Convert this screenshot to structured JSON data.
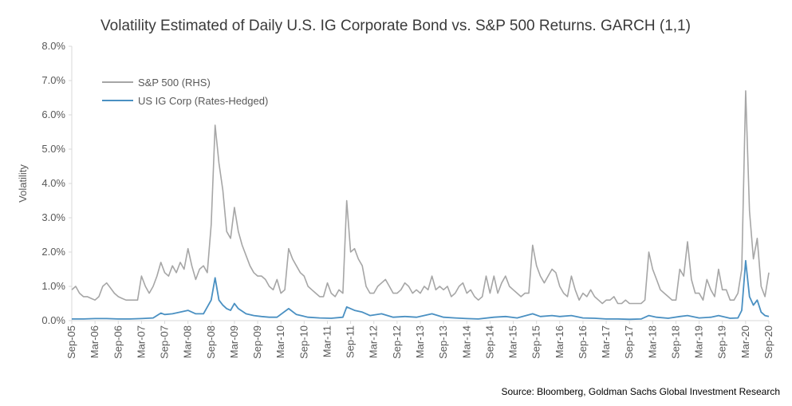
{
  "chart_data": {
    "type": "line",
    "title": "Volatility Estimated of Daily U.S. IG Corporate Bond vs. S&P 500 Returns. GARCH (1,1)",
    "ylabel": "Volatility",
    "xlabel": "",
    "ylim": [
      0,
      8
    ],
    "y_unit": "%",
    "y_tick_labels": [
      "0.0%",
      "1.0%",
      "2.0%",
      "3.0%",
      "4.0%",
      "5.0%",
      "6.0%",
      "7.0%",
      "8.0%"
    ],
    "x_tick_labels": [
      "Sep-05",
      "Mar-06",
      "Sep-06",
      "Mar-07",
      "Sep-07",
      "Mar-08",
      "Sep-08",
      "Mar-09",
      "Sep-09",
      "Mar-10",
      "Sep-10",
      "Mar-11",
      "Sep-11",
      "Mar-12",
      "Sep-12",
      "Mar-13",
      "Sep-13",
      "Mar-14",
      "Sep-14",
      "Mar-15",
      "Sep-15",
      "Mar-16",
      "Sep-16",
      "Mar-17",
      "Sep-17",
      "Mar-18",
      "Sep-18",
      "Mar-19",
      "Sep-19",
      "Mar-20",
      "Sep-20"
    ],
    "x_range": [
      "2005-09",
      "2020-09"
    ],
    "grid": false,
    "legend_position": "top-left",
    "source": "Source: Bloomberg, Goldman Sachs Global Investment Research",
    "series": [
      {
        "name": "S&P 500 (RHS)",
        "color": "#a6a6a6",
        "points": [
          [
            "2005-09",
            0.9
          ],
          [
            "2005-10",
            1.0
          ],
          [
            "2005-11",
            0.8
          ],
          [
            "2005-12",
            0.7
          ],
          [
            "2006-01",
            0.7
          ],
          [
            "2006-02",
            0.65
          ],
          [
            "2006-03",
            0.6
          ],
          [
            "2006-04",
            0.7
          ],
          [
            "2006-05",
            1.0
          ],
          [
            "2006-06",
            1.1
          ],
          [
            "2006-07",
            0.95
          ],
          [
            "2006-08",
            0.8
          ],
          [
            "2006-09",
            0.7
          ],
          [
            "2006-10",
            0.65
          ],
          [
            "2006-11",
            0.6
          ],
          [
            "2006-12",
            0.6
          ],
          [
            "2007-01",
            0.6
          ],
          [
            "2007-02",
            0.6
          ],
          [
            "2007-03",
            1.3
          ],
          [
            "2007-04",
            1.0
          ],
          [
            "2007-05",
            0.8
          ],
          [
            "2007-06",
            1.0
          ],
          [
            "2007-07",
            1.3
          ],
          [
            "2007-08",
            1.7
          ],
          [
            "2007-09",
            1.4
          ],
          [
            "2007-10",
            1.3
          ],
          [
            "2007-11",
            1.6
          ],
          [
            "2007-12",
            1.4
          ],
          [
            "2008-01",
            1.7
          ],
          [
            "2008-02",
            1.5
          ],
          [
            "2008-03",
            2.1
          ],
          [
            "2008-04",
            1.6
          ],
          [
            "2008-05",
            1.2
          ],
          [
            "2008-06",
            1.5
          ],
          [
            "2008-07",
            1.6
          ],
          [
            "2008-08",
            1.4
          ],
          [
            "2008-09",
            2.8
          ],
          [
            "2008-10",
            5.7
          ],
          [
            "2008-11",
            4.6
          ],
          [
            "2008-12",
            3.8
          ],
          [
            "2009-01",
            2.6
          ],
          [
            "2009-02",
            2.4
          ],
          [
            "2009-03",
            3.3
          ],
          [
            "2009-04",
            2.6
          ],
          [
            "2009-05",
            2.2
          ],
          [
            "2009-06",
            1.9
          ],
          [
            "2009-07",
            1.6
          ],
          [
            "2009-08",
            1.4
          ],
          [
            "2009-09",
            1.3
          ],
          [
            "2009-10",
            1.3
          ],
          [
            "2009-11",
            1.2
          ],
          [
            "2009-12",
            1.0
          ],
          [
            "2010-01",
            0.9
          ],
          [
            "2010-02",
            1.2
          ],
          [
            "2010-03",
            0.8
          ],
          [
            "2010-04",
            0.9
          ],
          [
            "2010-05",
            2.1
          ],
          [
            "2010-06",
            1.8
          ],
          [
            "2010-07",
            1.6
          ],
          [
            "2010-08",
            1.4
          ],
          [
            "2010-09",
            1.3
          ],
          [
            "2010-10",
            1.0
          ],
          [
            "2010-11",
            0.9
          ],
          [
            "2010-12",
            0.8
          ],
          [
            "2011-01",
            0.7
          ],
          [
            "2011-02",
            0.7
          ],
          [
            "2011-03",
            1.1
          ],
          [
            "2011-04",
            0.8
          ],
          [
            "2011-05",
            0.7
          ],
          [
            "2011-06",
            0.9
          ],
          [
            "2011-07",
            0.8
          ],
          [
            "2011-08",
            3.5
          ],
          [
            "2011-09",
            2.0
          ],
          [
            "2011-10",
            2.1
          ],
          [
            "2011-11",
            1.8
          ],
          [
            "2011-12",
            1.6
          ],
          [
            "2012-01",
            1.0
          ],
          [
            "2012-02",
            0.8
          ],
          [
            "2012-03",
            0.8
          ],
          [
            "2012-04",
            1.0
          ],
          [
            "2012-05",
            1.1
          ],
          [
            "2012-06",
            1.2
          ],
          [
            "2012-07",
            1.0
          ],
          [
            "2012-08",
            0.8
          ],
          [
            "2012-09",
            0.8
          ],
          [
            "2012-10",
            0.9
          ],
          [
            "2012-11",
            1.1
          ],
          [
            "2012-12",
            1.0
          ],
          [
            "2013-01",
            0.8
          ],
          [
            "2013-02",
            0.9
          ],
          [
            "2013-03",
            0.8
          ],
          [
            "2013-04",
            1.0
          ],
          [
            "2013-05",
            0.9
          ],
          [
            "2013-06",
            1.3
          ],
          [
            "2013-07",
            0.9
          ],
          [
            "2013-08",
            1.0
          ],
          [
            "2013-09",
            0.9
          ],
          [
            "2013-10",
            1.0
          ],
          [
            "2013-11",
            0.7
          ],
          [
            "2013-12",
            0.8
          ],
          [
            "2014-01",
            1.0
          ],
          [
            "2014-02",
            1.1
          ],
          [
            "2014-03",
            0.8
          ],
          [
            "2014-04",
            0.9
          ],
          [
            "2014-05",
            0.7
          ],
          [
            "2014-06",
            0.6
          ],
          [
            "2014-07",
            0.7
          ],
          [
            "2014-08",
            1.3
          ],
          [
            "2014-09",
            0.8
          ],
          [
            "2014-10",
            1.3
          ],
          [
            "2014-11",
            0.8
          ],
          [
            "2014-12",
            1.1
          ],
          [
            "2015-01",
            1.3
          ],
          [
            "2015-02",
            1.0
          ],
          [
            "2015-03",
            0.9
          ],
          [
            "2015-04",
            0.8
          ],
          [
            "2015-05",
            0.7
          ],
          [
            "2015-06",
            0.8
          ],
          [
            "2015-07",
            0.8
          ],
          [
            "2015-08",
            2.2
          ],
          [
            "2015-09",
            1.6
          ],
          [
            "2015-10",
            1.3
          ],
          [
            "2015-11",
            1.1
          ],
          [
            "2015-12",
            1.3
          ],
          [
            "2016-01",
            1.5
          ],
          [
            "2016-02",
            1.4
          ],
          [
            "2016-03",
            1.0
          ],
          [
            "2016-04",
            0.8
          ],
          [
            "2016-05",
            0.7
          ],
          [
            "2016-06",
            1.3
          ],
          [
            "2016-07",
            0.9
          ],
          [
            "2016-08",
            0.6
          ],
          [
            "2016-09",
            0.8
          ],
          [
            "2016-10",
            0.7
          ],
          [
            "2016-11",
            0.9
          ],
          [
            "2016-12",
            0.7
          ],
          [
            "2017-01",
            0.6
          ],
          [
            "2017-02",
            0.5
          ],
          [
            "2017-03",
            0.6
          ],
          [
            "2017-04",
            0.6
          ],
          [
            "2017-05",
            0.7
          ],
          [
            "2017-06",
            0.5
          ],
          [
            "2017-07",
            0.5
          ],
          [
            "2017-08",
            0.6
          ],
          [
            "2017-09",
            0.5
          ],
          [
            "2017-10",
            0.5
          ],
          [
            "2017-11",
            0.5
          ],
          [
            "2017-12",
            0.5
          ],
          [
            "2018-01",
            0.6
          ],
          [
            "2018-02",
            2.0
          ],
          [
            "2018-03",
            1.5
          ],
          [
            "2018-04",
            1.2
          ],
          [
            "2018-05",
            0.9
          ],
          [
            "2018-06",
            0.8
          ],
          [
            "2018-07",
            0.7
          ],
          [
            "2018-08",
            0.6
          ],
          [
            "2018-09",
            0.6
          ],
          [
            "2018-10",
            1.5
          ],
          [
            "2018-11",
            1.3
          ],
          [
            "2018-12",
            2.3
          ],
          [
            "2019-01",
            1.2
          ],
          [
            "2019-02",
            0.8
          ],
          [
            "2019-03",
            0.8
          ],
          [
            "2019-04",
            0.6
          ],
          [
            "2019-05",
            1.2
          ],
          [
            "2019-06",
            0.9
          ],
          [
            "2019-07",
            0.7
          ],
          [
            "2019-08",
            1.5
          ],
          [
            "2019-09",
            0.9
          ],
          [
            "2019-10",
            0.9
          ],
          [
            "2019-11",
            0.6
          ],
          [
            "2019-12",
            0.6
          ],
          [
            "2020-01",
            0.8
          ],
          [
            "2020-02",
            1.5
          ],
          [
            "2020-03",
            6.7
          ],
          [
            "2020-04",
            3.2
          ],
          [
            "2020-05",
            1.8
          ],
          [
            "2020-06",
            2.4
          ],
          [
            "2020-07",
            1.0
          ],
          [
            "2020-08",
            0.7
          ],
          [
            "2020-09",
            1.4
          ]
        ]
      },
      {
        "name": "US IG Corp (Rates-Hedged)",
        "color": "#4a90c2",
        "points": [
          [
            "2005-09",
            0.05
          ],
          [
            "2005-12",
            0.05
          ],
          [
            "2006-03",
            0.06
          ],
          [
            "2006-06",
            0.06
          ],
          [
            "2006-09",
            0.05
          ],
          [
            "2006-12",
            0.05
          ],
          [
            "2007-03",
            0.06
          ],
          [
            "2007-06",
            0.08
          ],
          [
            "2007-08",
            0.22
          ],
          [
            "2007-09",
            0.18
          ],
          [
            "2007-11",
            0.2
          ],
          [
            "2008-01",
            0.25
          ],
          [
            "2008-03",
            0.3
          ],
          [
            "2008-05",
            0.2
          ],
          [
            "2008-07",
            0.2
          ],
          [
            "2008-09",
            0.6
          ],
          [
            "2008-10",
            1.25
          ],
          [
            "2008-11",
            0.6
          ],
          [
            "2008-12",
            0.45
          ],
          [
            "2009-01",
            0.35
          ],
          [
            "2009-02",
            0.3
          ],
          [
            "2009-03",
            0.5
          ],
          [
            "2009-04",
            0.35
          ],
          [
            "2009-06",
            0.2
          ],
          [
            "2009-08",
            0.15
          ],
          [
            "2009-10",
            0.12
          ],
          [
            "2009-12",
            0.1
          ],
          [
            "2010-02",
            0.1
          ],
          [
            "2010-05",
            0.35
          ],
          [
            "2010-07",
            0.18
          ],
          [
            "2010-10",
            0.1
          ],
          [
            "2011-01",
            0.08
          ],
          [
            "2011-04",
            0.07
          ],
          [
            "2011-07",
            0.1
          ],
          [
            "2011-08",
            0.4
          ],
          [
            "2011-10",
            0.3
          ],
          [
            "2011-12",
            0.25
          ],
          [
            "2012-02",
            0.15
          ],
          [
            "2012-05",
            0.2
          ],
          [
            "2012-08",
            0.1
          ],
          [
            "2012-11",
            0.12
          ],
          [
            "2013-02",
            0.1
          ],
          [
            "2013-06",
            0.2
          ],
          [
            "2013-09",
            0.1
          ],
          [
            "2013-12",
            0.08
          ],
          [
            "2014-03",
            0.06
          ],
          [
            "2014-06",
            0.05
          ],
          [
            "2014-10",
            0.1
          ],
          [
            "2015-01",
            0.12
          ],
          [
            "2015-04",
            0.08
          ],
          [
            "2015-08",
            0.2
          ],
          [
            "2015-10",
            0.12
          ],
          [
            "2016-01",
            0.15
          ],
          [
            "2016-03",
            0.12
          ],
          [
            "2016-06",
            0.15
          ],
          [
            "2016-09",
            0.08
          ],
          [
            "2016-12",
            0.07
          ],
          [
            "2017-03",
            0.05
          ],
          [
            "2017-06",
            0.05
          ],
          [
            "2017-09",
            0.04
          ],
          [
            "2017-12",
            0.05
          ],
          [
            "2018-02",
            0.15
          ],
          [
            "2018-04",
            0.1
          ],
          [
            "2018-07",
            0.07
          ],
          [
            "2018-10",
            0.12
          ],
          [
            "2018-12",
            0.15
          ],
          [
            "2019-03",
            0.08
          ],
          [
            "2019-06",
            0.1
          ],
          [
            "2019-08",
            0.15
          ],
          [
            "2019-11",
            0.07
          ],
          [
            "2020-01",
            0.08
          ],
          [
            "2020-02",
            0.3
          ],
          [
            "2020-03",
            1.75
          ],
          [
            "2020-04",
            0.7
          ],
          [
            "2020-05",
            0.45
          ],
          [
            "2020-06",
            0.6
          ],
          [
            "2020-07",
            0.25
          ],
          [
            "2020-08",
            0.15
          ],
          [
            "2020-09",
            0.12
          ]
        ]
      }
    ]
  }
}
